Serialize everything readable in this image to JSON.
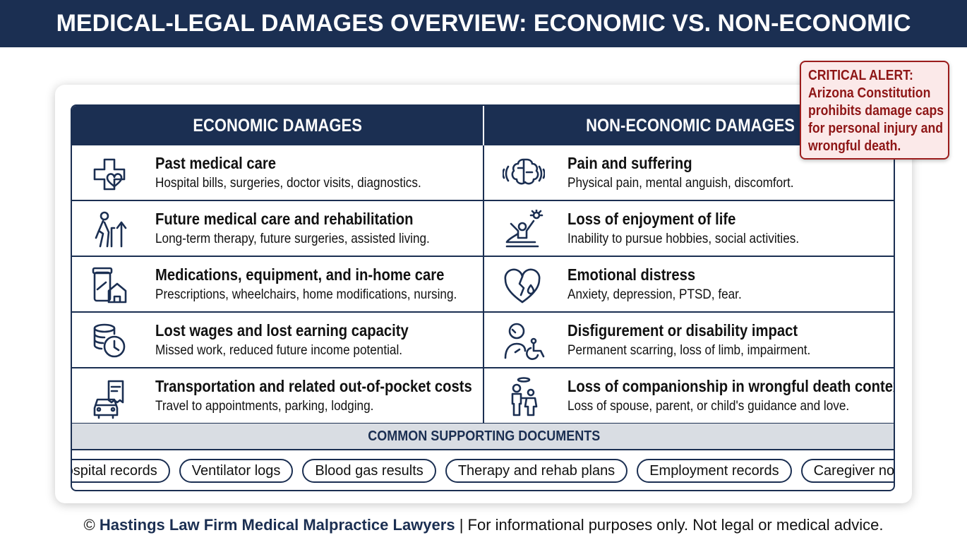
{
  "header": {
    "title": "MEDICAL-LEGAL DAMAGES OVERVIEW: ECONOMIC VS. NON-ECONOMIC"
  },
  "alert": {
    "text": "CRITICAL ALERT: Arizona Constitution prohibits damage caps for personal injury and wrongful death."
  },
  "table": {
    "columns": [
      "ECONOMIC DAMAGES",
      "NON-ECONOMIC DAMAGES"
    ],
    "economic": [
      {
        "title": "Past medical care",
        "description": "Hospital bills, surgeries, doctor visits, diagnostics."
      },
      {
        "title": "Future medical care and rehabilitation",
        "description": "Long-term therapy, future surgeries, assisted living."
      },
      {
        "title": "Medications, equipment, and in-home care",
        "description": "Prescriptions, wheelchairs, home modifications, nursing."
      },
      {
        "title": "Lost wages and lost earning capacity",
        "description": "Missed work, reduced future income potential."
      },
      {
        "title": "Transportation and related out-of-pocket costs",
        "description": "Travel to appointments, parking, lodging."
      }
    ],
    "non_economic": [
      {
        "title": "Pain and suffering",
        "description": "Physical pain, mental anguish, discomfort."
      },
      {
        "title": "Loss of enjoyment of life",
        "description": "Inability to pursue hobbies, social activities."
      },
      {
        "title": "Emotional distress",
        "description": "Anxiety, depression, PTSD, fear."
      },
      {
        "title": "Disfigurement or disability impact",
        "description": "Permanent scarring, loss of limb, impairment."
      },
      {
        "title": "Loss of companionship in wrongful death context",
        "description": "Loss of spouse, parent, or child's guidance and love."
      }
    ]
  },
  "documents": {
    "title": "COMMON SUPPORTING DOCUMENTS",
    "items": [
      "Hospital records",
      "Ventilator logs",
      "Blood gas results",
      "Therapy and rehab plans",
      "Employment records",
      "Caregiver notes"
    ]
  },
  "footer": {
    "symbol": "©",
    "firm": "Hastings Law Firm Medical Malpractice Lawyers",
    "note": "| For informational purposes only. Not legal or medical advice."
  }
}
